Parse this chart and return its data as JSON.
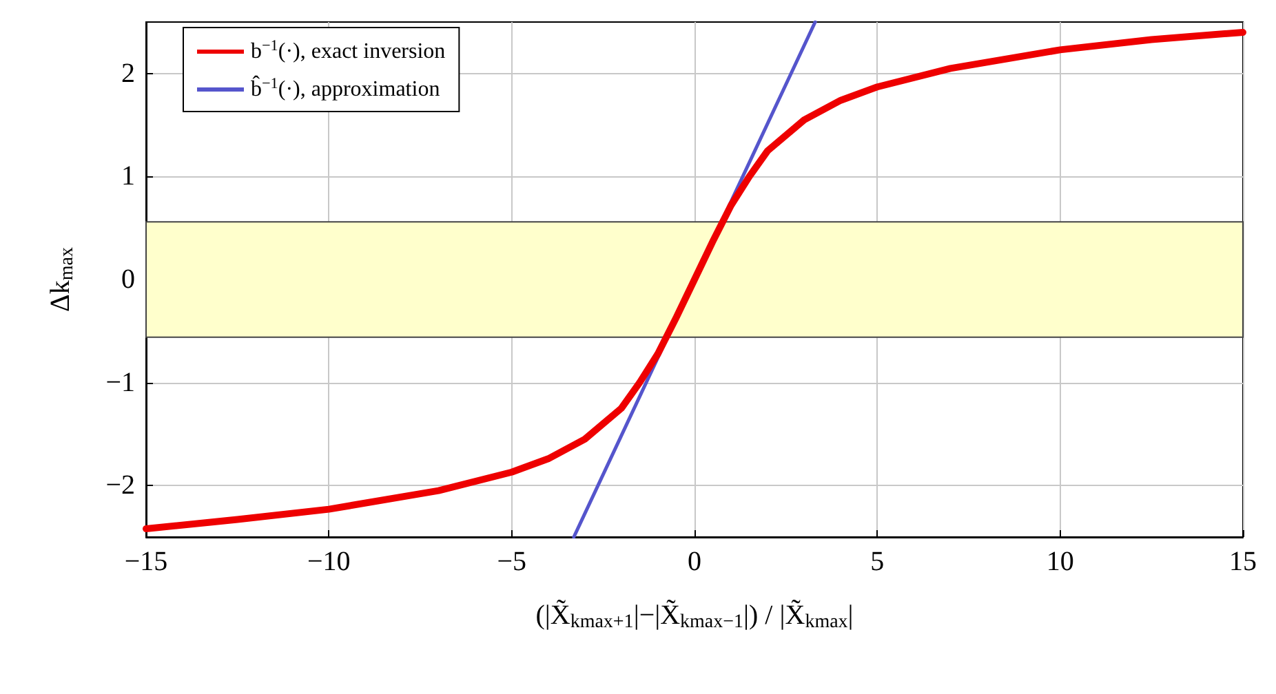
{
  "chart_data": {
    "type": "line",
    "xlabel": "(|X̃$_{kmax+1}$|−|X̃$_{kmax−1}$|) / |X̃$_{kmax}$|",
    "ylabel": "Δk$_{max}$",
    "xlim": [
      -15,
      15
    ],
    "ylim": [
      -2.5,
      2.5
    ],
    "xticks": [
      -15,
      -10,
      -5,
      0,
      5,
      10,
      15
    ],
    "yticks": [
      -2,
      -1,
      0,
      1,
      2
    ],
    "grid": true,
    "legend": "top left",
    "marker": "none",
    "line_style": "solid",
    "bands": [
      {
        "axis": "y",
        "from": -0.56,
        "to": 0.56,
        "color": "#ffffcc"
      }
    ],
    "series": [
      {
        "name": "b$^{−1}$(·), exact inversion",
        "color": "#ee0000",
        "x": [
          -15,
          -12.5,
          -10,
          -7,
          -5,
          -4,
          -3,
          -2,
          -1.5,
          -1,
          -0.5,
          0,
          0.5,
          1,
          1.5,
          2,
          3,
          4,
          5,
          7,
          10,
          12.5,
          15
        ],
        "values": [
          -2.42,
          -2.33,
          -2.23,
          -2.05,
          -1.87,
          -1.74,
          -1.55,
          -1.25,
          -1.0,
          -0.72,
          -0.37,
          0,
          0.37,
          0.72,
          1.0,
          1.25,
          1.55,
          1.74,
          1.87,
          2.05,
          2.23,
          2.33,
          2.4
        ]
      },
      {
        "name": "b̂$^{−1}$(·), approximation",
        "color": "#5555cc",
        "x": [
          -3.3,
          3.3
        ],
        "values": [
          -2.5,
          2.5
        ]
      }
    ]
  }
}
